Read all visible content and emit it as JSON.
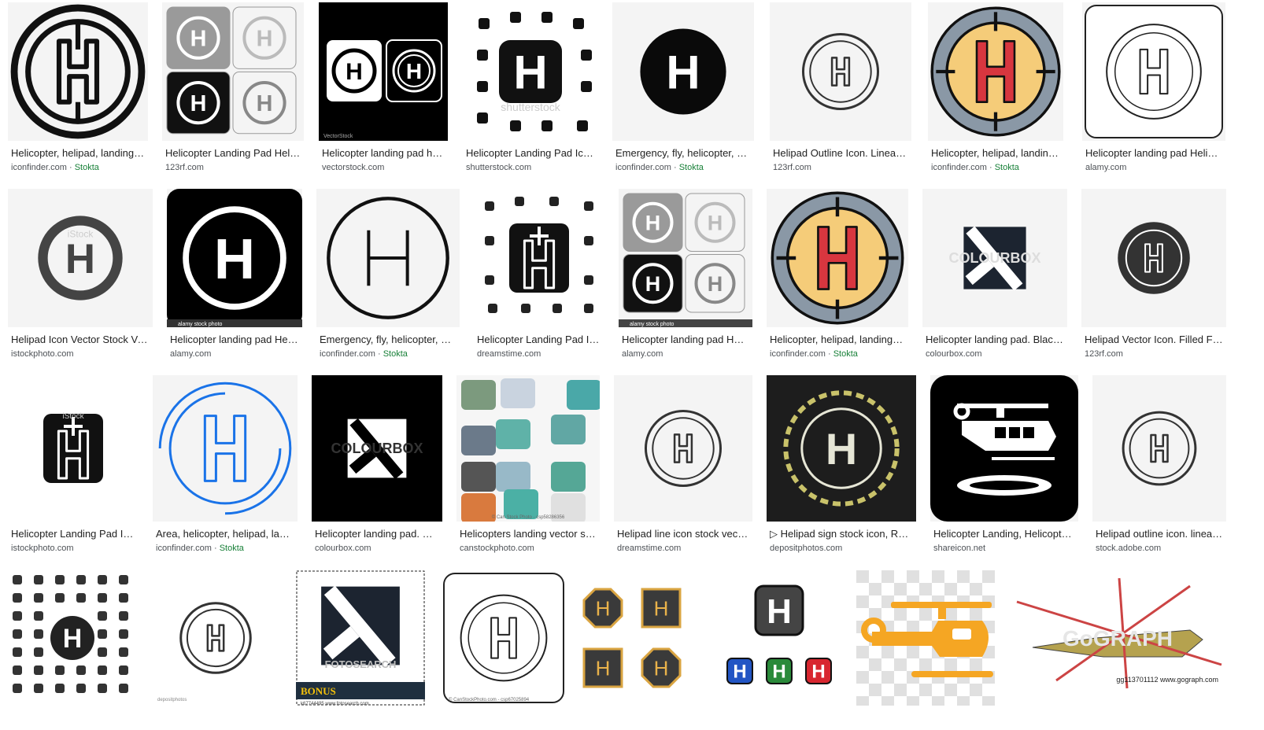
{
  "results": [
    {
      "title": "Helicopter, helipad, landing, t...",
      "source": "iconfinder.com",
      "extra": "Stokta",
      "icon": "helipad-crosshair-icon"
    },
    {
      "title": "Helicopter Landing Pad Helic...",
      "source": "123rf.com",
      "extra": "",
      "icon": "helipad-four-variants-icon"
    },
    {
      "title": "Helicopter landing pad heli...",
      "source": "vectorstock.com",
      "extra": "",
      "icon": "helipad-dark-pair-icon",
      "watermark": "VectorStock"
    },
    {
      "title": "Helicopter Landing Pad Ico...",
      "source": "shutterstock.com",
      "extra": "",
      "icon": "helipad-medical-set-icon",
      "watermark": "shutterstock"
    },
    {
      "title": "Emergency, fly, helicopter, hel...",
      "source": "iconfinder.com",
      "extra": "Stokta",
      "icon": "helipad-filled-circle-icon"
    },
    {
      "title": "Helipad Outline Icon. Linear ...",
      "source": "123rf.com",
      "extra": "",
      "icon": "helipad-outline-icon"
    },
    {
      "title": "Helicopter, helipad, landing, t...",
      "source": "iconfinder.com",
      "extra": "Stokta",
      "icon": "helipad-color-crosshair-icon"
    },
    {
      "title": "Helicopter landing pad Helico...",
      "source": "alamy.com",
      "extra": "",
      "icon": "helipad-rounded-square-icon"
    },
    {
      "title": "Helipad Icon Vector Stock Vec...",
      "source": "istockphoto.com",
      "extra": "",
      "icon": "helipad-grey-circle-icon",
      "watermark": "iStock"
    },
    {
      "title": "Helicopter landing pad Helic...",
      "source": "alamy.com",
      "extra": "",
      "icon": "helipad-black-square-icon",
      "watermark": "alamy stock photo"
    },
    {
      "title": "Emergency, fly, helicopter, he...",
      "source": "iconfinder.com",
      "extra": "Stokta",
      "icon": "helipad-thin-circle-icon"
    },
    {
      "title": "Helicopter Landing Pad Ic...",
      "source": "dreamstime.com",
      "extra": "",
      "icon": "helipad-medical-square-icon"
    },
    {
      "title": "Helicopter landing pad Heli...",
      "source": "alamy.com",
      "extra": "",
      "icon": "helipad-four-variants-icon",
      "watermark": "alamy stock photo"
    },
    {
      "title": "Helicopter, helipad, landing, t...",
      "source": "iconfinder.com",
      "extra": "Stokta",
      "icon": "helipad-color-crosshair-icon"
    },
    {
      "title": "Helicopter landing pad. Black ...",
      "source": "colourbox.com",
      "extra": "",
      "icon": "helipad-diagonal-h-icon",
      "watermark": "COLOURBOX"
    },
    {
      "title": "Helipad Vector Icon. Filled Fla...",
      "source": "123rf.com",
      "extra": "",
      "icon": "helipad-dark-circle-icon"
    },
    {
      "title": "Helicopter Landing Pad Ic...",
      "source": "istockphoto.com",
      "extra": "",
      "icon": "helipad-medical-square-icon",
      "watermark": "iStock"
    },
    {
      "title": "Area, helicopter, helipad, land...",
      "source": "iconfinder.com",
      "extra": "Stokta",
      "icon": "helipad-blue-arc-icon"
    },
    {
      "title": "Helicopter landing pad. W...",
      "source": "colourbox.com",
      "extra": "",
      "icon": "helipad-diagonal-h-black-icon",
      "watermark": "COLOURBOX"
    },
    {
      "title": "Helicopters landing vector set...",
      "source": "canstockphoto.com",
      "extra": "",
      "icon": "helipad-illustration-set-icon",
      "watermark": "© Can Stock Photo - csp58286356"
    },
    {
      "title": "Helipad line icon stock vecto...",
      "source": "dreamstime.com",
      "extra": "",
      "icon": "helipad-outline-icon"
    },
    {
      "title": "▷ Helipad sign stock icon, Roy...",
      "source": "depositphotos.com",
      "extra": "",
      "icon": "helipad-asphalt-icon"
    },
    {
      "title": "Helicopter Landing, Helicopter...",
      "source": "shareicon.net",
      "extra": "",
      "icon": "helicopter-landing-icon"
    },
    {
      "title": "Helipad outline icon. linear ...",
      "source": "stock.adobe.com",
      "extra": "",
      "icon": "helipad-outline-icon"
    },
    {
      "title": "",
      "source": "",
      "extra": "",
      "icon": "medical-icon-grid-icon"
    },
    {
      "title": "",
      "source": "",
      "extra": "",
      "icon": "helipad-outline-icon",
      "watermark": "depositphotos"
    },
    {
      "title": "",
      "source": "",
      "extra": "",
      "icon": "helipad-diagonal-h-icon",
      "watermark": "FOTOSEARCH",
      "bonus": "BONUS",
      "code": "k67744495 www.fotosearch.com"
    },
    {
      "title": "",
      "source": "",
      "extra": "",
      "icon": "helipad-rounded-square-icon",
      "watermark": "© CanStockPhoto.com - csp67025894"
    },
    {
      "title": "",
      "source": "",
      "extra": "",
      "icon": "helipad-octagon-set-icon"
    },
    {
      "title": "",
      "source": "",
      "extra": "",
      "icon": "helipad-colored-h-set-icon"
    },
    {
      "title": "",
      "source": "",
      "extra": "",
      "icon": "orange-helicopter-icon"
    },
    {
      "title": "",
      "source": "",
      "extra": "",
      "icon": "military-helicopter-photo-icon",
      "code": "gg113701112 www.gograph.com"
    }
  ],
  "colors": {
    "stokta": "#188038",
    "caption": "#222222",
    "source": "#4d5156",
    "yellow": "#f5cc79",
    "red": "#d8363f",
    "slate": "#8a98a6",
    "blue": "#1a73e8",
    "orange": "#f5a623"
  }
}
